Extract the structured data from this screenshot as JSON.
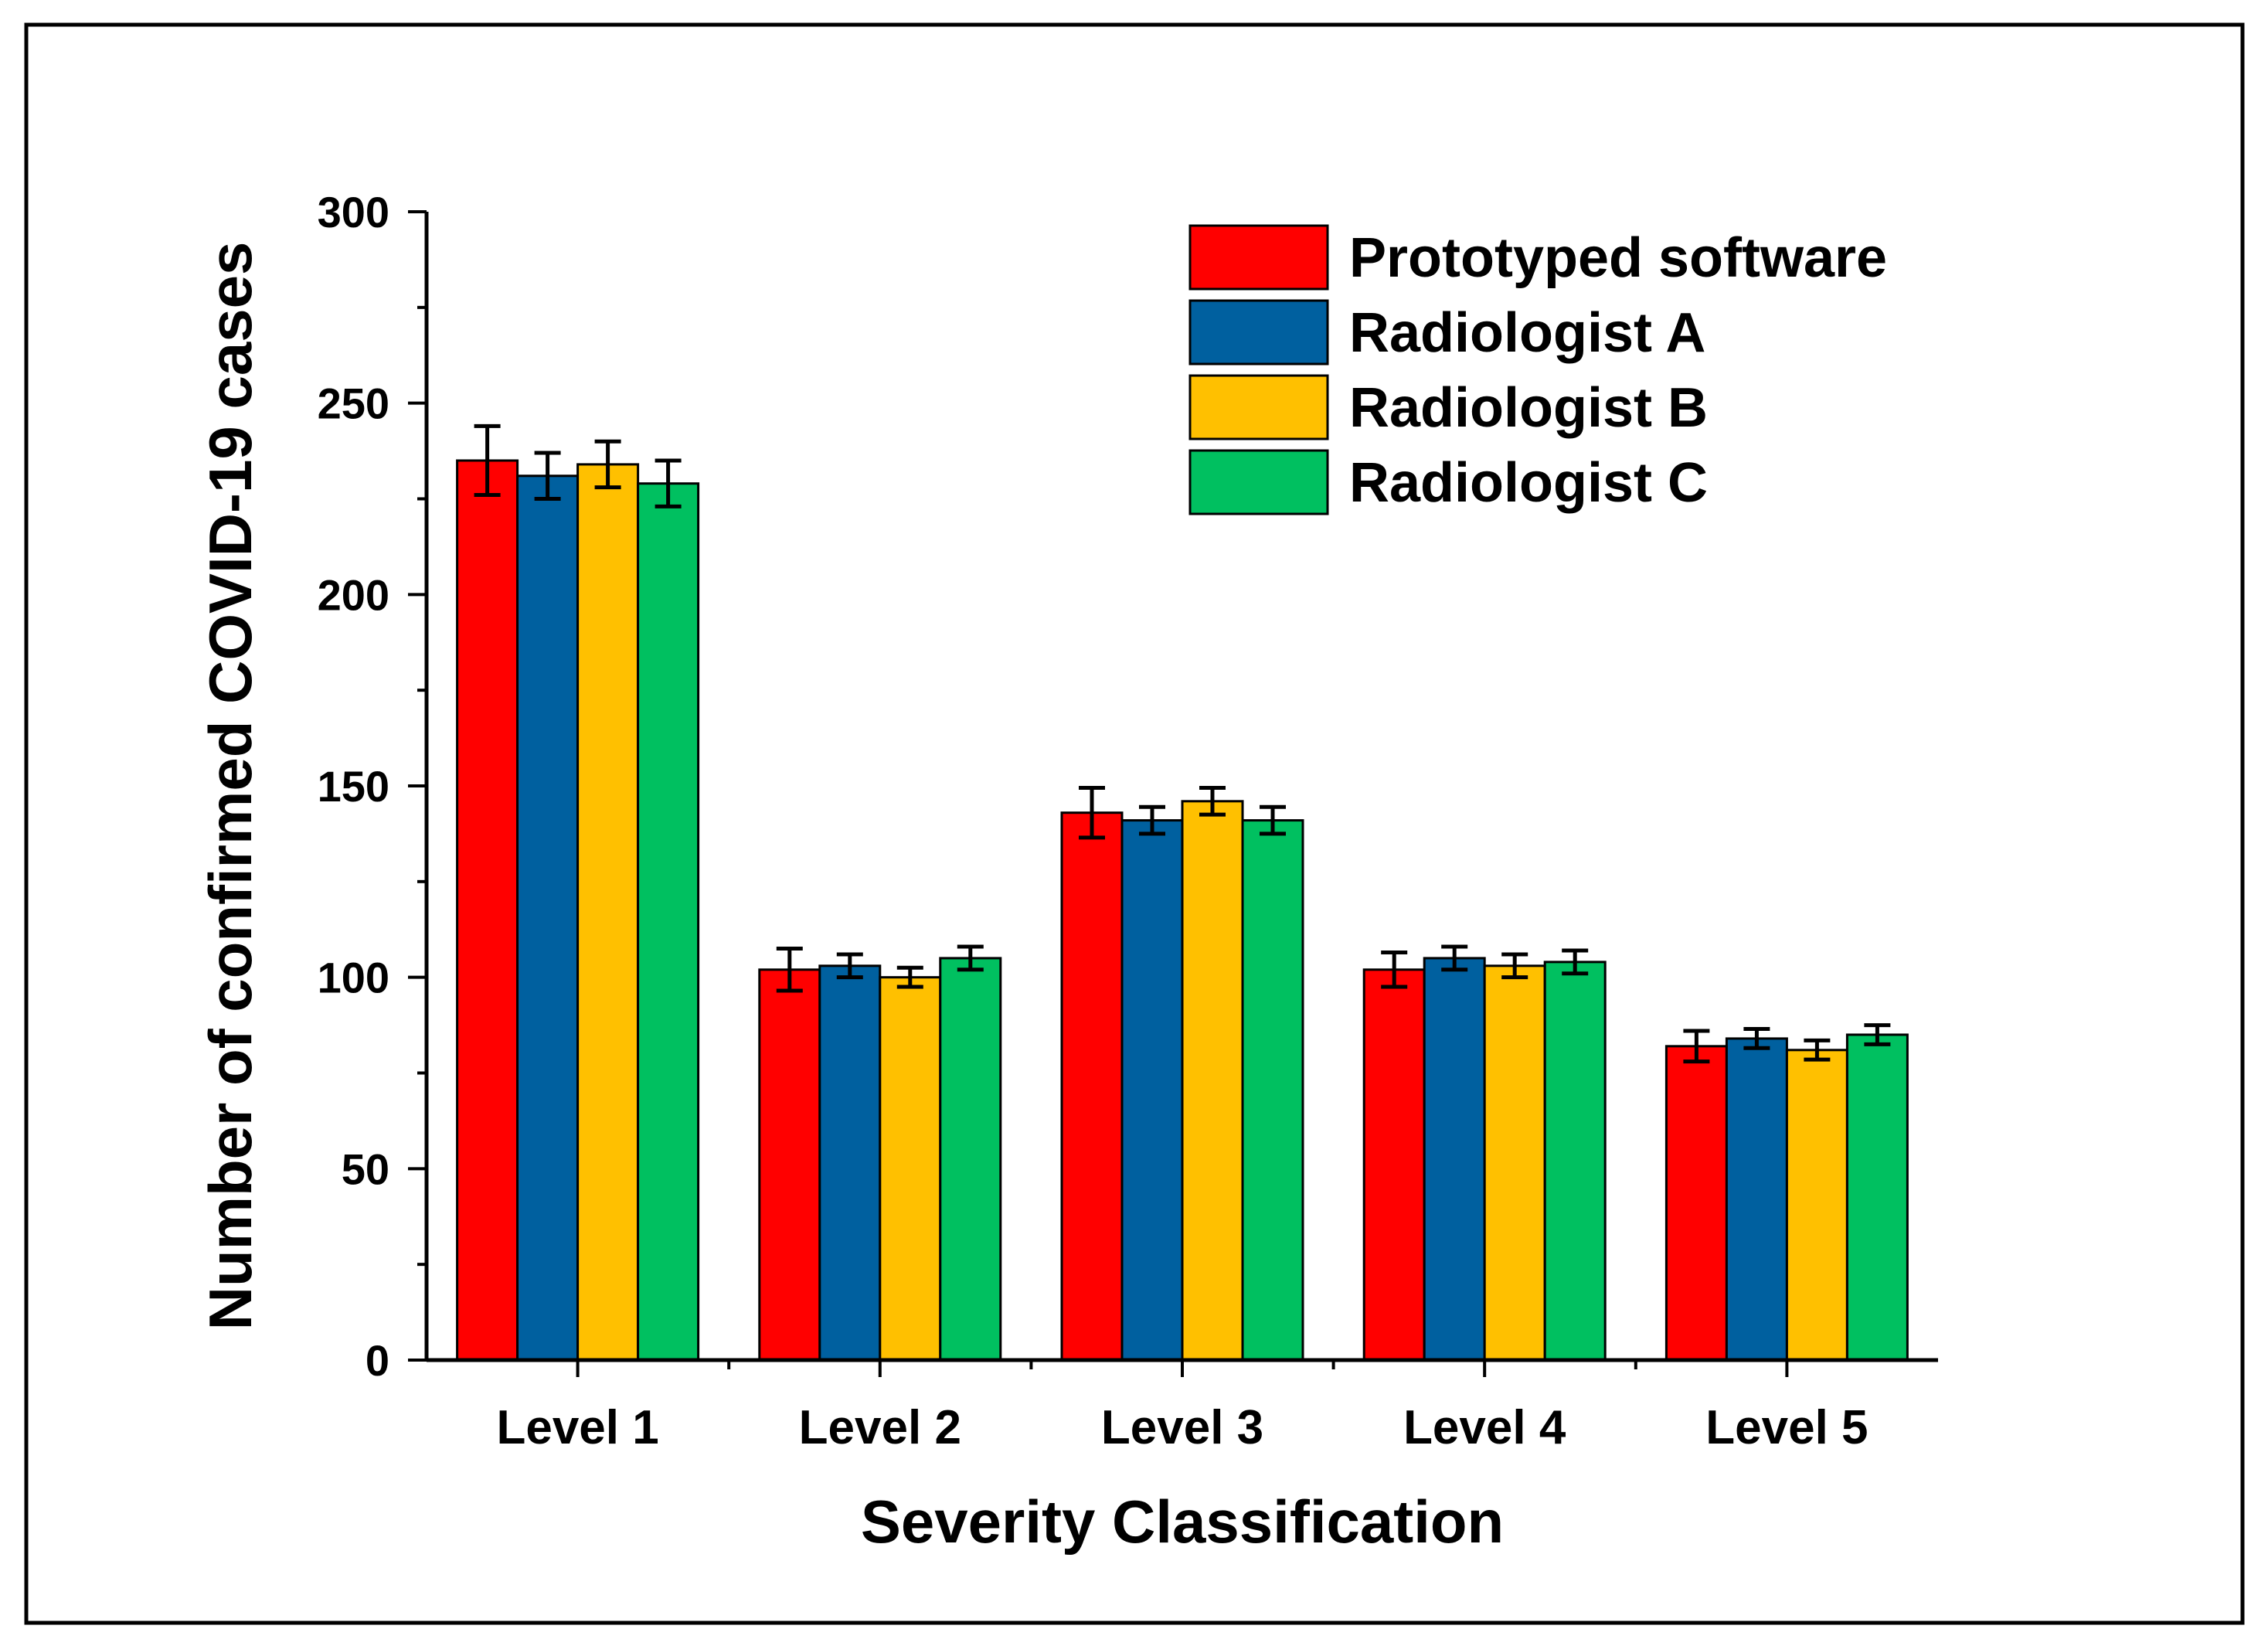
{
  "chart_data": {
    "type": "bar",
    "title": "",
    "xlabel": "Severity Classification",
    "ylabel": "Number of confirmed COVID-19 cases",
    "ylim": [
      0,
      300
    ],
    "yticks": [
      0,
      50,
      100,
      150,
      200,
      250,
      300
    ],
    "ytick_labels": [
      "0",
      "50",
      "100",
      "150",
      "200",
      "250",
      "300"
    ],
    "categories": [
      "Level 1",
      "Level 2",
      "Level 3",
      "Level 4",
      "Level 5"
    ],
    "series": [
      {
        "name": "Prototyped software",
        "color": "#ff0000",
        "values": [
          235,
          102,
          143,
          102,
          82
        ],
        "errors": [
          9,
          5.5,
          6.5,
          4.5,
          4
        ]
      },
      {
        "name": "Radiologist A",
        "color": "#00609f",
        "values": [
          231,
          103,
          141,
          105,
          84
        ],
        "errors": [
          6,
          3,
          3.5,
          3,
          2.5
        ]
      },
      {
        "name": "Radiologist B",
        "color": "#ffc000",
        "values": [
          234,
          100,
          146,
          103,
          81
        ],
        "errors": [
          6,
          2.5,
          3.5,
          3,
          2.5
        ]
      },
      {
        "name": "Radiologist C",
        "color": "#00c060",
        "values": [
          229,
          105,
          141,
          104,
          85
        ],
        "errors": [
          6,
          3,
          3.5,
          3,
          2.5
        ]
      }
    ],
    "legend_position": "top-right"
  }
}
